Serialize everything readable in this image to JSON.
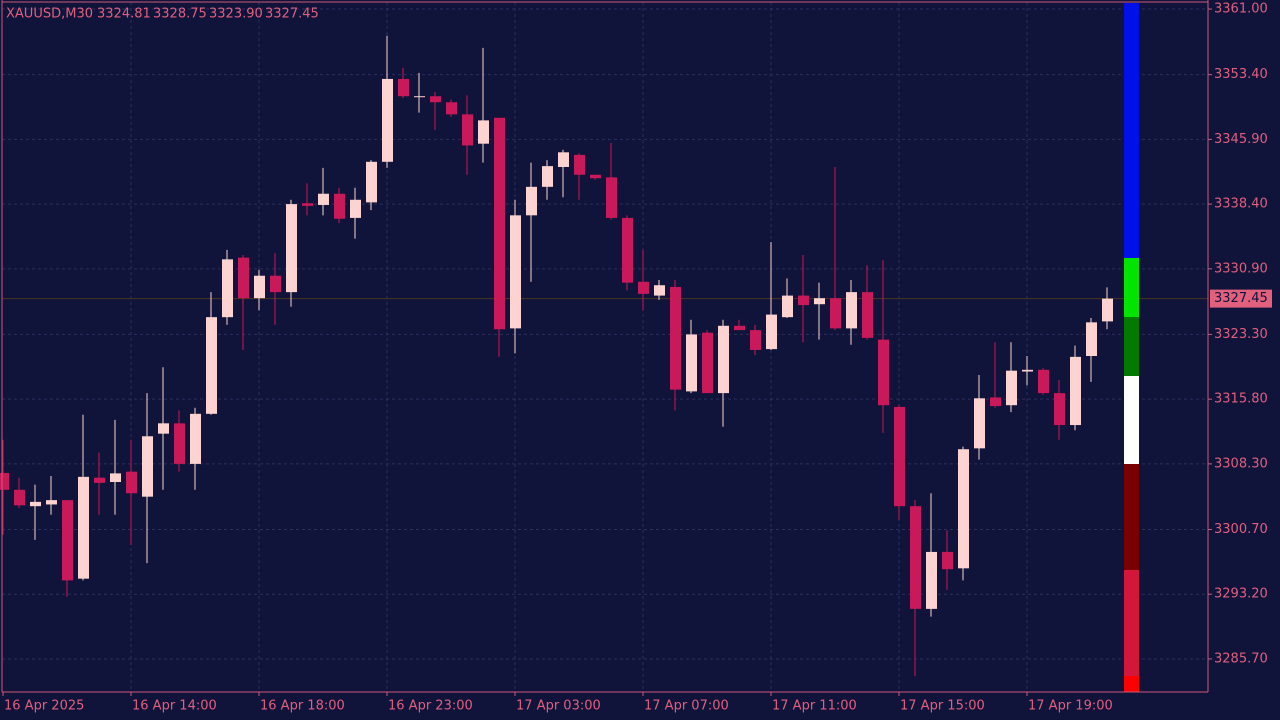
{
  "chart_data": {
    "type": "candlestick",
    "title": "XAUUSD,M30",
    "title_values": [
      "3324.81",
      "3328.75",
      "3323.90",
      "3327.45"
    ],
    "categories": [
      "16 Apr 2025",
      null,
      null,
      null,
      null,
      null,
      null,
      null,
      "16 Apr 14:00",
      null,
      null,
      null,
      null,
      null,
      null,
      null,
      "16 Apr 18:00",
      null,
      null,
      null,
      null,
      null,
      null,
      null,
      "16 Apr 23:00",
      null,
      null,
      null,
      null,
      null,
      null,
      null,
      "17 Apr 03:00",
      null,
      null,
      null,
      null,
      null,
      null,
      null,
      "17 Apr 07:00",
      null,
      null,
      null,
      null,
      null,
      null,
      null,
      "17 Apr 11:00",
      null,
      null,
      null,
      null,
      null,
      null,
      null,
      "17 Apr 15:00",
      null,
      null,
      null,
      null,
      null,
      null,
      null,
      "17 Apr 19:00",
      null,
      null,
      null,
      null,
      null
    ],
    "open": [
      3307.25,
      3305.3,
      3303.4,
      3303.6,
      3304.1,
      3295.0,
      3306.7,
      3306.2,
      3307.4,
      3304.5,
      3311.8,
      3313.0,
      3308.3,
      3314.1,
      3325.3,
      3332.2,
      3327.5,
      3330.1,
      3328.2,
      3338.5,
      3338.3,
      3339.6,
      3336.8,
      3338.6,
      3343.3,
      3352.9,
      3350.8,
      3350.9,
      3350.2,
      3348.8,
      3345.4,
      3348.4,
      3324.0,
      3337.1,
      3340.4,
      3342.7,
      3344.1,
      3341.8,
      3341.5,
      3336.8,
      3329.4,
      3327.8,
      3328.8,
      3316.7,
      3323.5,
      3316.5,
      3324.3,
      3323.8,
      3321.6,
      3325.3,
      3327.8,
      3326.8,
      3327.5,
      3324.0,
      3328.2,
      3322.7,
      3314.9,
      3303.4,
      3291.5,
      3298.1,
      3296.2,
      3310.1,
      3316.0,
      3315.1,
      3319.0,
      3319.2,
      3316.5,
      3312.8,
      3320.8,
      3324.81
    ],
    "high": [
      3311.1,
      3306.7,
      3305.9,
      3306.9,
      3304.1,
      3314.0,
      3309.6,
      3313.4,
      3311.1,
      3316.5,
      3319.5,
      3314.5,
      3314.8,
      3328.2,
      3333.1,
      3332.5,
      3330.8,
      3332.7,
      3338.9,
      3340.8,
      3342.6,
      3340.3,
      3340.3,
      3343.5,
      3357.9,
      3354.2,
      3353.6,
      3351.4,
      3350.5,
      3351.0,
      3356.5,
      3348.4,
      3338.9,
      3343.2,
      3343.5,
      3344.7,
      3344.3,
      3341.8,
      3345.5,
      3337.1,
      3333.1,
      3329.6,
      3329.6,
      3325.0,
      3323.8,
      3325.0,
      3325.0,
      3324.4,
      3334.0,
      3329.8,
      3332.5,
      3329.3,
      3342.7,
      3329.6,
      3331.3,
      3331.9,
      3315.1,
      3304.1,
      3304.9,
      3300.6,
      3310.3,
      3318.6,
      3322.4,
      3322.4,
      3320.8,
      3319.4,
      3318.0,
      3322.0,
      3325.2,
      3328.75
    ],
    "low": [
      3300.1,
      3303.2,
      3299.5,
      3302.4,
      3292.9,
      3294.8,
      3302.4,
      3302.4,
      3298.9,
      3296.8,
      3305.3,
      3307.4,
      3305.3,
      3314.0,
      3324.4,
      3321.5,
      3326.1,
      3324.4,
      3326.5,
      3337.1,
      3337.1,
      3336.2,
      3334.4,
      3337.7,
      3342.6,
      3350.7,
      3349.0,
      3347.0,
      3348.5,
      3341.8,
      3343.2,
      3320.7,
      3321.1,
      3329.4,
      3338.9,
      3339.2,
      3338.9,
      3341.2,
      3336.6,
      3328.4,
      3326.1,
      3327.3,
      3314.5,
      3316.5,
      3316.5,
      3312.6,
      3323.8,
      3320.9,
      3321.5,
      3325.2,
      3322.4,
      3322.7,
      3323.8,
      3322.1,
      3322.7,
      3311.9,
      3301.8,
      3283.7,
      3290.6,
      3293.7,
      3294.8,
      3308.8,
      3314.8,
      3314.3,
      3317.4,
      3316.3,
      3311.1,
      3312.2,
      3317.8,
      3323.9
    ],
    "close": [
      3305.3,
      3303.5,
      3303.9,
      3304.1,
      3294.8,
      3306.8,
      3306.1,
      3307.2,
      3304.9,
      3311.5,
      3313.0,
      3308.3,
      3314.1,
      3325.3,
      3332.0,
      3327.5,
      3330.1,
      3328.2,
      3338.4,
      3338.2,
      3339.6,
      3336.7,
      3338.9,
      3343.3,
      3352.9,
      3350.9,
      3350.9,
      3350.2,
      3348.8,
      3345.2,
      3348.1,
      3323.9,
      3337.1,
      3340.4,
      3342.8,
      3344.4,
      3341.8,
      3341.4,
      3336.8,
      3329.3,
      3328.0,
      3329.0,
      3316.9,
      3323.3,
      3316.5,
      3324.3,
      3323.8,
      3321.5,
      3325.6,
      3327.8,
      3326.7,
      3327.5,
      3324.0,
      3328.2,
      3322.9,
      3315.1,
      3303.4,
      3291.5,
      3298.1,
      3296.1,
      3310.0,
      3315.9,
      3315.0,
      3319.1,
      3319.2,
      3316.5,
      3312.8,
      3320.7,
      3324.7,
      3327.45
    ],
    "up_color": "#fcd3d0",
    "down_color": "#c8195a",
    "ylim": [
      3281.87,
      3361.7
    ],
    "yticks": [
      {
        "value": 3361,
        "label": "3361.00"
      },
      {
        "value": 3353.4,
        "label": "3353.40"
      },
      {
        "value": 3345.9,
        "label": "3345.90"
      },
      {
        "value": 3338.4,
        "label": "3338.40"
      },
      {
        "value": 3330.9,
        "label": "3330.90"
      },
      {
        "value": 3323.3,
        "label": "3323.30"
      },
      {
        "value": 3315.8,
        "label": "3315.80"
      },
      {
        "value": 3308.3,
        "label": "3308.30"
      },
      {
        "value": 3300.7,
        "label": "3300.70"
      },
      {
        "value": 3293.2,
        "label": "3293.20"
      },
      {
        "value": 3285.7,
        "label": "3285.70"
      }
    ],
    "grid": true,
    "last_price": {
      "value": 3327.45,
      "label": "3327.45"
    }
  }
}
